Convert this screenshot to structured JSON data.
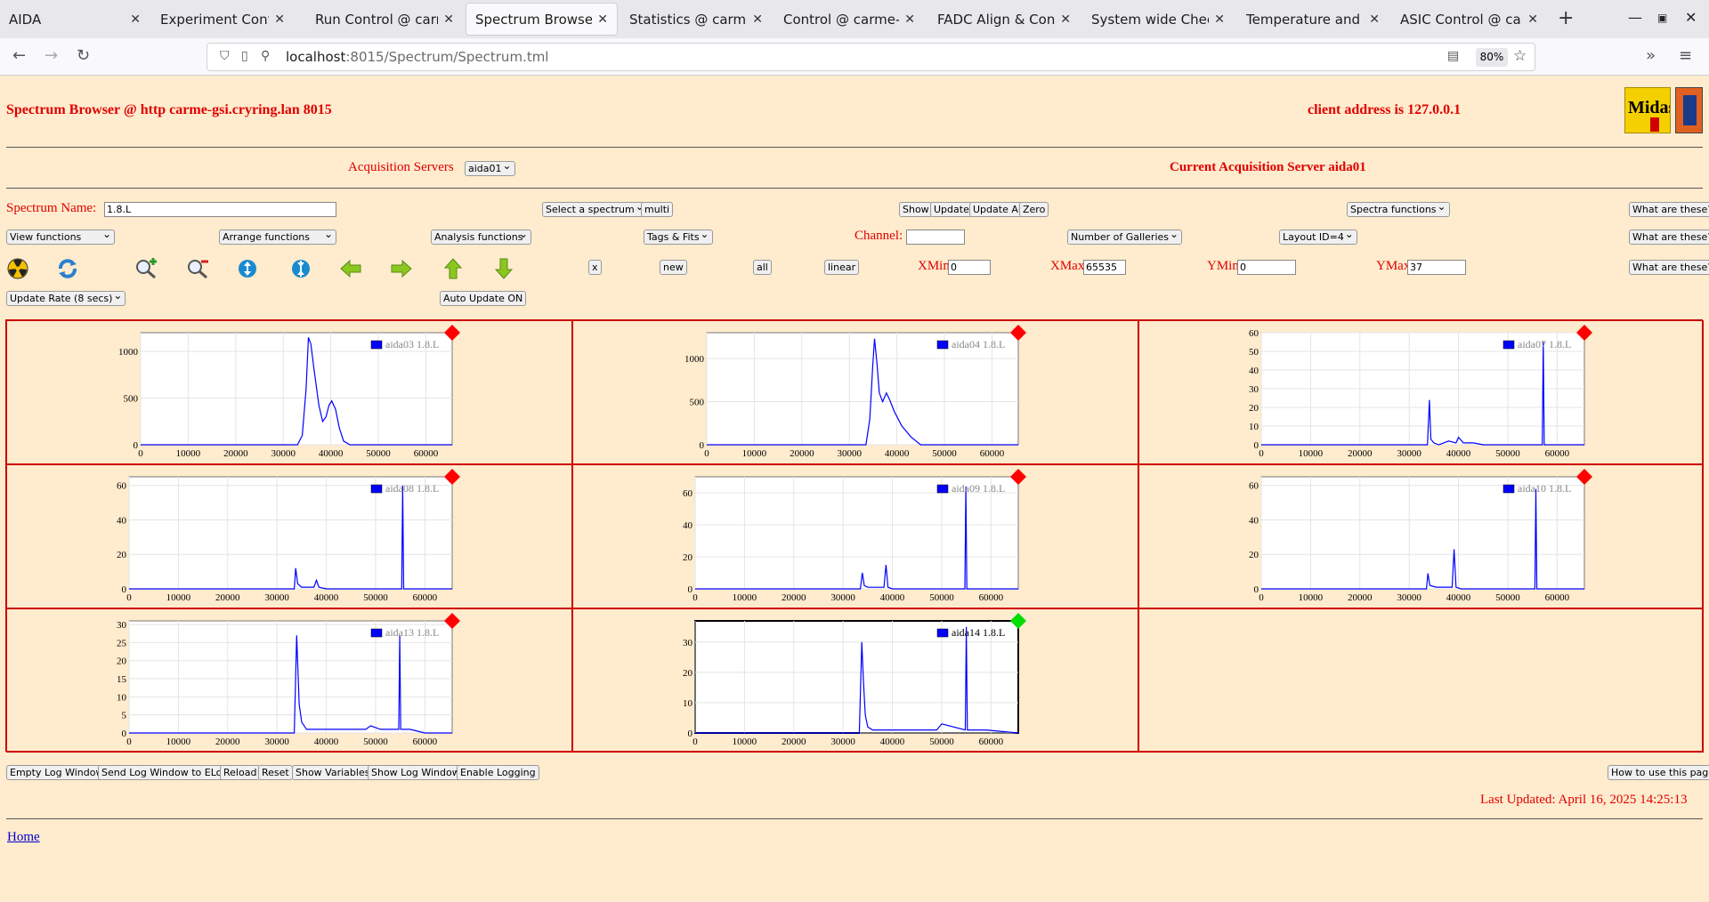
{
  "browser": {
    "tabs": [
      {
        "label": "AIDA",
        "left": 0,
        "width": 168
      },
      {
        "label": "Experiment Control @",
        "left": 170,
        "width": 160
      },
      {
        "label": "Run Control @ carme",
        "left": 344,
        "width": 176
      },
      {
        "label": "Spectrum Browser @",
        "left": 523,
        "width": 171,
        "active": true
      },
      {
        "label": "Statistics @ carme-gs",
        "left": 697,
        "width": 170
      },
      {
        "label": "Control @ carme-gsi",
        "left": 870,
        "width": 168
      },
      {
        "label": "FADC Align & Contro",
        "left": 1043,
        "width": 170
      },
      {
        "label": "System wide Checks",
        "left": 1216,
        "width": 170
      },
      {
        "label": "Temperature and stat",
        "left": 1390,
        "width": 170
      },
      {
        "label": "ASIC Control @ carm",
        "left": 1563,
        "width": 175
      }
    ],
    "url_host": "localhost",
    "url_path": ":8015/Spectrum/Spectrum.tml",
    "zoom": "80%"
  },
  "header": {
    "title": "Spectrum Browser @ http carme-gsi.cryring.lan 8015",
    "client_address": "client address is 127.0.0.1"
  },
  "acquisition": {
    "label": "Acquisition Servers",
    "server_select": "aida01",
    "current": "Current Acquisition Server aida01"
  },
  "controls": {
    "spectrum_name_label": "Spectrum Name:",
    "spectrum_name_value": "1.8.L",
    "select_spectrum": "Select a spectrum",
    "multi": "multi",
    "show": "Show",
    "update": "Update",
    "update_all": "Update All",
    "zero": "Zero",
    "spectra_functions": "Spectra functions",
    "what_are_these": "What are these?",
    "view_functions": "View functions",
    "arrange_functions": "Arrange functions",
    "analysis_functions": "Analysis functions",
    "tags_fits": "Tags & Fits",
    "channel_label": "Channel:",
    "channel_value": "",
    "number_of_galleries": "Number of Galleries",
    "layout": "Layout ID=4",
    "x_btn": "x",
    "new_btn": "new",
    "all_btn": "all",
    "linear_btn": "linear",
    "xmin_label": "XMin",
    "xmin_value": "0",
    "xmax_label": "XMax",
    "xmax_value": "65535",
    "ymin_label": "YMin",
    "ymin_value": "0",
    "ymax_label": "YMax",
    "ymax_value": "37",
    "update_rate": "Update Rate (8 secs)",
    "auto_update": "Auto Update ON"
  },
  "toolbar_icons": [
    "radiation-icon",
    "refresh-icon",
    "zoom-in-icon",
    "zoom-out-icon",
    "y-expand-icon",
    "y-contract-icon",
    "arrow-left-icon",
    "arrow-right-icon",
    "arrow-up-icon",
    "arrow-down-icon"
  ],
  "colors": {
    "accent": "#e00000",
    "series": "#0000ff",
    "marker_red": "#ff0000",
    "marker_green": "#00dd00",
    "background": "#ffebcd"
  },
  "chart_data": [
    {
      "type": "line",
      "legend": "aida03 1.8.L",
      "xlim": [
        0,
        65535
      ],
      "ylim": [
        0,
        1200
      ],
      "yticks": [
        0,
        500,
        1000
      ],
      "xticks": [
        0,
        10000,
        20000,
        30000,
        40000,
        50000,
        60000
      ],
      "marker": "red",
      "x": [
        0,
        33000,
        34000,
        34800,
        35300,
        35800,
        36500,
        37500,
        38300,
        39000,
        39600,
        40200,
        41000,
        41800,
        42700,
        44000,
        65535
      ],
      "y": [
        0,
        0,
        100,
        600,
        1150,
        1080,
        800,
        420,
        250,
        300,
        420,
        470,
        380,
        180,
        40,
        0,
        0
      ]
    },
    {
      "type": "line",
      "legend": "aida04 1.8.L",
      "xlim": [
        0,
        65535
      ],
      "ylim": [
        0,
        1300
      ],
      "yticks": [
        0,
        500,
        1000
      ],
      "xticks": [
        0,
        10000,
        20000,
        30000,
        40000,
        50000,
        60000
      ],
      "marker": "red",
      "x": [
        0,
        33500,
        34300,
        34900,
        35300,
        35800,
        36300,
        37000,
        37800,
        38500,
        39500,
        41000,
        43000,
        45000,
        65535
      ],
      "y": [
        0,
        0,
        300,
        900,
        1230,
        950,
        600,
        500,
        600,
        520,
        380,
        220,
        90,
        0,
        0
      ]
    },
    {
      "type": "line",
      "legend": "aida07 1.8.L",
      "xlim": [
        0,
        65535
      ],
      "ylim": [
        0,
        60
      ],
      "yticks": [
        0,
        10,
        20,
        30,
        40,
        50,
        60
      ],
      "xticks": [
        0,
        10000,
        20000,
        30000,
        40000,
        50000,
        60000
      ],
      "marker": "red",
      "x": [
        0,
        33700,
        34100,
        34400,
        35000,
        36000,
        38000,
        39500,
        40000,
        41000,
        43000,
        45000,
        57000,
        57200,
        57400,
        65535
      ],
      "y": [
        0,
        0,
        24,
        3,
        1,
        0,
        2,
        1,
        4,
        1,
        1,
        0,
        0,
        55,
        0,
        0
      ]
    },
    {
      "type": "line",
      "legend": "aida08 1.8.L",
      "xlim": [
        0,
        65535
      ],
      "ylim": [
        0,
        65
      ],
      "yticks": [
        0,
        20,
        40,
        60
      ],
      "xticks": [
        0,
        10000,
        20000,
        30000,
        40000,
        50000,
        60000
      ],
      "marker": "red",
      "x": [
        0,
        33500,
        33800,
        34200,
        35000,
        37500,
        38000,
        38500,
        40000,
        55300,
        55500,
        55700,
        65535
      ],
      "y": [
        0,
        0,
        12,
        3,
        1,
        1,
        5,
        1,
        0,
        0,
        60,
        0,
        0
      ]
    },
    {
      "type": "line",
      "legend": "aida09 1.8.L",
      "xlim": [
        0,
        65535
      ],
      "ylim": [
        0,
        70
      ],
      "yticks": [
        0,
        20,
        40,
        60
      ],
      "xticks": [
        0,
        10000,
        20000,
        30000,
        40000,
        50000,
        60000
      ],
      "marker": "red",
      "x": [
        0,
        33500,
        33900,
        34300,
        35000,
        38300,
        38700,
        39100,
        40000,
        54700,
        54900,
        55100,
        65535
      ],
      "y": [
        0,
        0,
        10,
        2,
        1,
        1,
        15,
        1,
        0,
        0,
        64,
        0,
        0
      ]
    },
    {
      "type": "line",
      "legend": "aida10 1.8.L",
      "xlim": [
        0,
        65535
      ],
      "ylim": [
        0,
        65
      ],
      "yticks": [
        0,
        20,
        40,
        60
      ],
      "xticks": [
        0,
        10000,
        20000,
        30000,
        40000,
        50000,
        60000
      ],
      "marker": "red",
      "x": [
        0,
        33500,
        33800,
        34200,
        35500,
        38700,
        39100,
        39500,
        40500,
        55500,
        55700,
        55900,
        65535
      ],
      "y": [
        0,
        0,
        9,
        2,
        1,
        1,
        23,
        1,
        0,
        0,
        58,
        0,
        0
      ]
    },
    {
      "type": "line",
      "legend": "aida13 1.8.L",
      "xlim": [
        0,
        65535
      ],
      "ylim": [
        0,
        31
      ],
      "yticks": [
        0,
        5,
        10,
        15,
        20,
        25,
        30
      ],
      "xticks": [
        0,
        10000,
        20000,
        30000,
        40000,
        50000,
        60000
      ],
      "marker": "red",
      "x": [
        0,
        33500,
        34000,
        34500,
        35000,
        36000,
        38000,
        42000,
        48000,
        49000,
        51000,
        54700,
        54900,
        55100,
        57000,
        60000,
        65535
      ],
      "y": [
        0,
        0,
        27,
        8,
        3,
        1,
        1,
        1,
        1,
        2,
        1,
        1,
        27,
        1,
        1,
        0,
        0
      ]
    },
    {
      "type": "line",
      "legend": "aida14 1.8.L",
      "xlim": [
        0,
        65535
      ],
      "ylim": [
        0,
        37
      ],
      "yticks": [
        0,
        10,
        20,
        30
      ],
      "xticks": [
        0,
        10000,
        20000,
        30000,
        40000,
        50000,
        60000
      ],
      "marker": "green",
      "selected": true,
      "x": [
        0,
        33300,
        33800,
        34100,
        34500,
        35000,
        36000,
        38000,
        40000,
        45000,
        49000,
        50000,
        54800,
        55000,
        55200,
        57000,
        59000,
        65535
      ],
      "y": [
        0,
        0,
        30,
        18,
        6,
        2,
        1,
        1,
        1,
        1,
        1,
        3,
        1,
        35,
        1,
        1,
        1,
        0
      ]
    }
  ],
  "bottom": {
    "buttons": [
      "Empty Log Window",
      "Send Log Window to ELog",
      "Reload",
      "Reset",
      "Show Variables",
      "Show Log Window",
      "Enable Logging"
    ],
    "how_to": "How to use this page",
    "last_updated": "Last Updated: April 16, 2025 14:25:13",
    "home": "Home"
  }
}
